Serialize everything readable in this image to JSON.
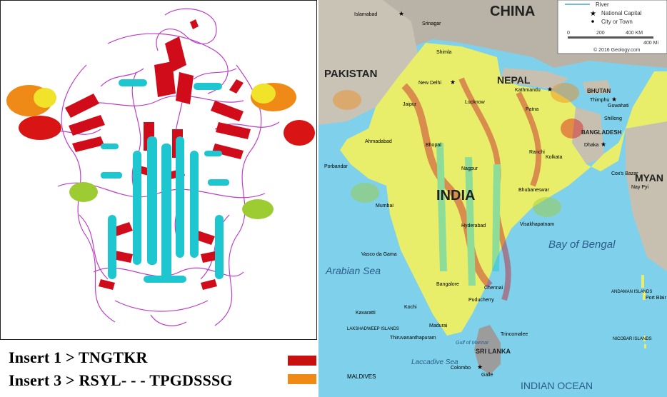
{
  "legend": {
    "insert1": "Insert 1 > TNGTKR",
    "insert3": "Insert  3 >  RSYL- - - TPGDSSSG",
    "insert1_color": "#c8100f",
    "insert3_color": "#ef8a17"
  },
  "map": {
    "countries": {
      "china": "CHINA",
      "pakistan": "PAKISTAN",
      "nepal": "NEPAL",
      "bhutan": "BHUTAN",
      "bangladesh": "BANGLADESH",
      "india": "INDIA",
      "sri_lanka": "SRI LANKA",
      "myanmar": "MYAN"
    },
    "water": {
      "arabian_sea": "Arabian Sea",
      "bay_of_bengal": "Bay of Bengal",
      "indian_ocean": "INDIAN OCEAN",
      "laccadive_sea": "Laccadive Sea",
      "gulf_mannar": "Gulf of Mannar"
    },
    "legend_box": {
      "river": "River",
      "national_capital": "National Capital",
      "city": "City or Town",
      "scale_0": "0",
      "scale_200": "200",
      "scale_400": "400 KM",
      "scale_mi": "400 Mi",
      "copyright": "© 2016 Geology.com"
    },
    "cities": {
      "islamabad": "Islamabad",
      "new_delhi": "New Delhi",
      "kathmandu": "Kathmandu",
      "thimphu": "Thimphu",
      "dhaka": "Dhaka",
      "kolkata": "Kolkata",
      "mumbai": "Mumbai",
      "hyderabad": "Hyderabad",
      "chennai": "Chennai",
      "bangalore": "Bangalore",
      "colombo": "Colombo",
      "kavaratti": "Kavaratti",
      "port_blair": "Port Blair",
      "visakhapatnam": "Visakhapatnam",
      "jaipur": "Jaipur",
      "lucknow": "Lucknow",
      "patna": "Patna",
      "ahmadabad": "Ahmadabad",
      "nagpur": "Nagpur",
      "bhopal": "Bhopal",
      "thiruvananthapuram": "Thiruvananthapuram",
      "madurai": "Madurai",
      "trincomalee": "Trincomalee",
      "galle": "Galle",
      "male": "MALDIVES",
      "lakshadweep": "LAKSHADWEEP ISLANDS",
      "andaman": "ANDAMAN ISLANDS",
      "nicobar": "NICOBAR ISLANDS",
      "porbandar": "Porbandar",
      "vasco": "Vasco da Gama",
      "shillong": "Shillong",
      "guwahati": "Guwahati",
      "kochi": "Kochi",
      "pondicherry": "Puducherry",
      "ranchi": "Ranchi",
      "bhubaneswar": "Bhubaneswar",
      "srinagar": "Srinagar",
      "shimla": "Shimla",
      "cox": "Cox's Bazar",
      "nay": "Nay Pyi"
    }
  }
}
